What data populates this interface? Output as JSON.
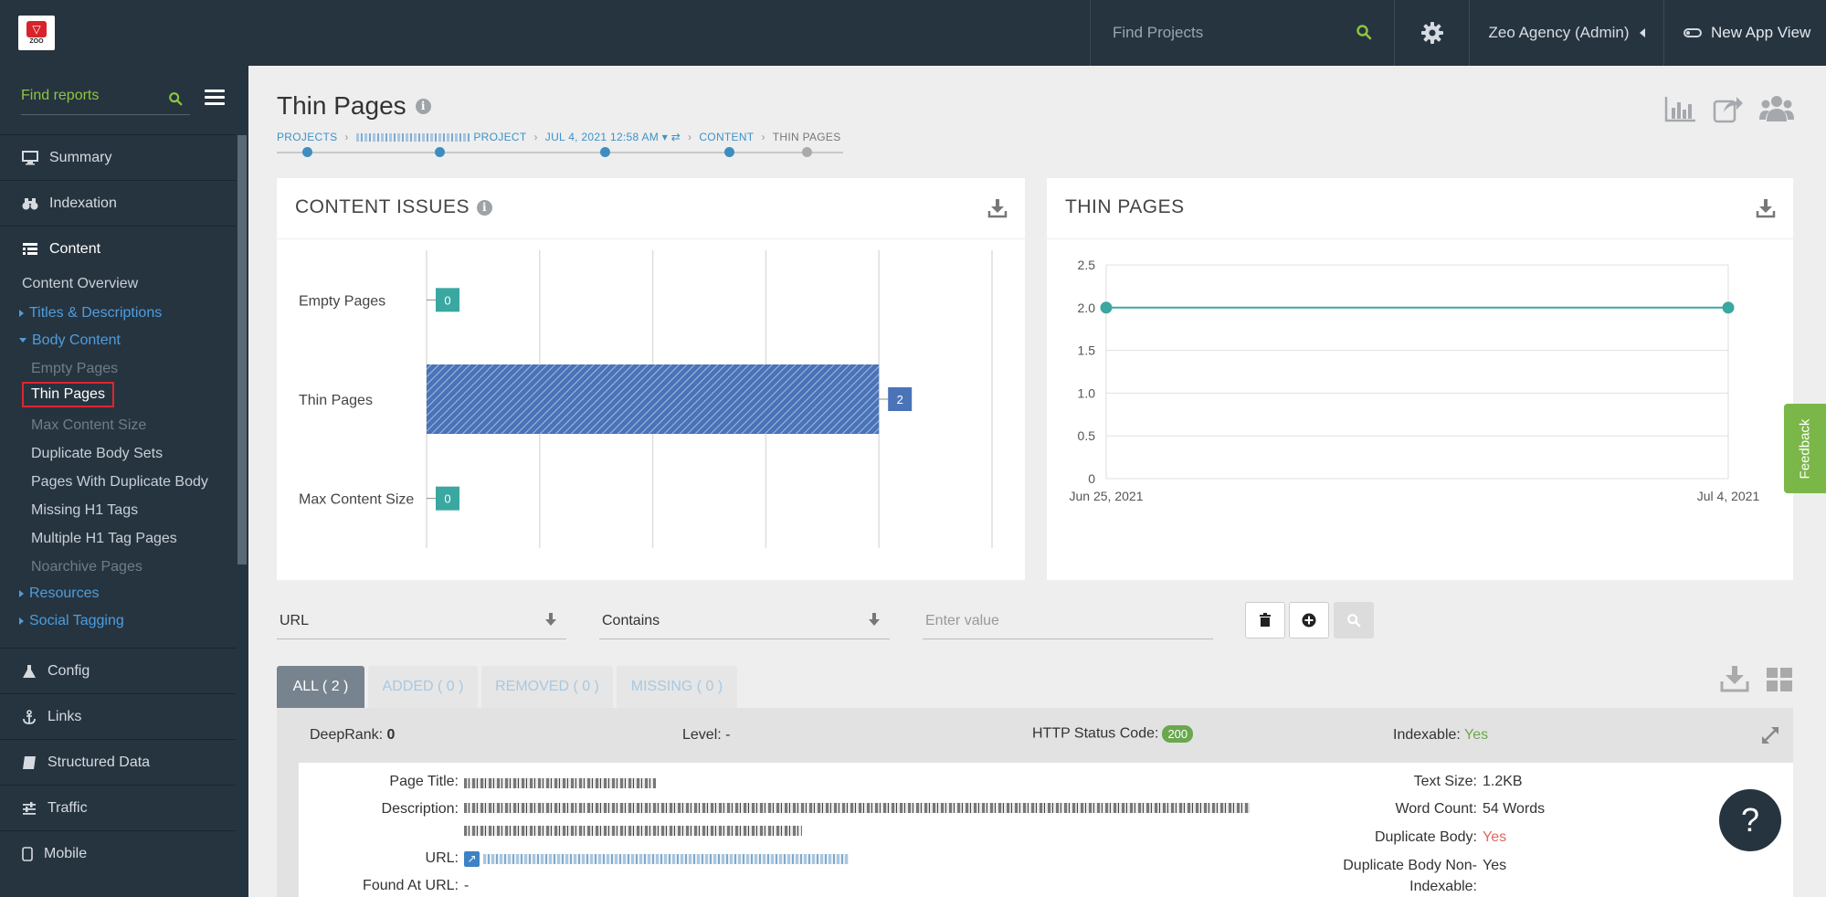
{
  "topbar": {
    "logo_text": "ZOO",
    "search_placeholder": "Find Projects",
    "account_label": "Zeo Agency (Admin)",
    "new_app_view_label": "New App View"
  },
  "sidebar": {
    "search_placeholder": "Find reports",
    "main_items": [
      {
        "label": "Summary",
        "icon": "monitor-icon"
      },
      {
        "label": "Indexation",
        "icon": "binoculars-icon"
      },
      {
        "label": "Content",
        "icon": "list-icon"
      },
      {
        "label": "Config",
        "icon": "flask-icon"
      },
      {
        "label": "Links",
        "icon": "anchor-icon"
      },
      {
        "label": "Structured Data",
        "icon": "book-icon"
      },
      {
        "label": "Traffic",
        "icon": "sliders-icon"
      },
      {
        "label": "Mobile",
        "icon": "mobile-icon"
      }
    ],
    "content_sub": {
      "overview": "Content Overview",
      "titles": "Titles & Descriptions",
      "body_content": "Body Content",
      "body_items": [
        "Empty Pages",
        "Thin Pages",
        "Max Content Size",
        "Duplicate Body Sets",
        "Pages With Duplicate Body",
        "Missing H1 Tags",
        "Multiple H1 Tag Pages",
        "Noarchive Pages"
      ],
      "resources": "Resources",
      "social": "Social Tagging"
    }
  },
  "page": {
    "title": "Thin Pages",
    "breadcrumb": {
      "projects": "PROJECTS",
      "project_suffix": "PROJECT",
      "date": "JUL 4, 2021 12:58 AM",
      "content": "CONTENT",
      "current": "THIN PAGES"
    }
  },
  "content_issues_card": {
    "title": "CONTENT ISSUES"
  },
  "thin_pages_card": {
    "title": "THIN PAGES"
  },
  "chart_data": [
    {
      "type": "bar",
      "orientation": "horizontal",
      "title": "CONTENT ISSUES",
      "categories": [
        "Empty Pages",
        "Thin Pages",
        "Max Content Size"
      ],
      "values": [
        0,
        2,
        0
      ],
      "xlim": [
        0,
        2.5
      ],
      "grid": true
    },
    {
      "type": "line",
      "title": "THIN PAGES",
      "x": [
        "Jun 25, 2021",
        "Jul 4, 2021"
      ],
      "series": [
        {
          "values": [
            2,
            2
          ]
        }
      ],
      "ylim": [
        0,
        2.5
      ],
      "yticks": [
        "0",
        "0.5",
        "1.0",
        "1.5",
        "2.0",
        "2.5"
      ],
      "grid": true,
      "color": "#3aa7a0"
    }
  ],
  "filters": {
    "field": "URL",
    "operator": "Contains",
    "value_placeholder": "Enter value"
  },
  "tabs": [
    {
      "label": "ALL ( 2 )",
      "active": true
    },
    {
      "label": "ADDED ( 0 )",
      "active": false
    },
    {
      "label": "REMOVED ( 0 )",
      "active": false
    },
    {
      "label": "MISSING ( 0 )",
      "active": false
    }
  ],
  "result": {
    "deeprank_label": "DeepRank:",
    "deeprank_value": "0",
    "level_label": "Level:",
    "level_value": "-",
    "http_label": "HTTP Status Code:",
    "http_value": "200",
    "indexable_label": "Indexable:",
    "indexable_value": "Yes",
    "page_title_label": "Page Title:",
    "description_label": "Description:",
    "url_label": "URL:",
    "found_at_label": "Found At URL:",
    "found_at_value": "-",
    "text_size_label": "Text Size:",
    "text_size_value": "1.2KB",
    "word_count_label": "Word Count:",
    "word_count_value": "54 Words",
    "dup_body_label": "Duplicate Body:",
    "dup_body_value": "Yes",
    "dup_body_nonidx_label_1": "Duplicate Body Non-",
    "dup_body_nonidx_label_2": "Indexable:",
    "dup_body_nonidx_value": "Yes"
  },
  "feedback_label": "Feedback",
  "help_label": "?",
  "colors": {
    "sidebar_bg": "#263440",
    "accent_green": "#8dc63f",
    "link_blue": "#4f9ddc",
    "bar_blue": "#4a73b8",
    "teal": "#3aa7a0"
  }
}
